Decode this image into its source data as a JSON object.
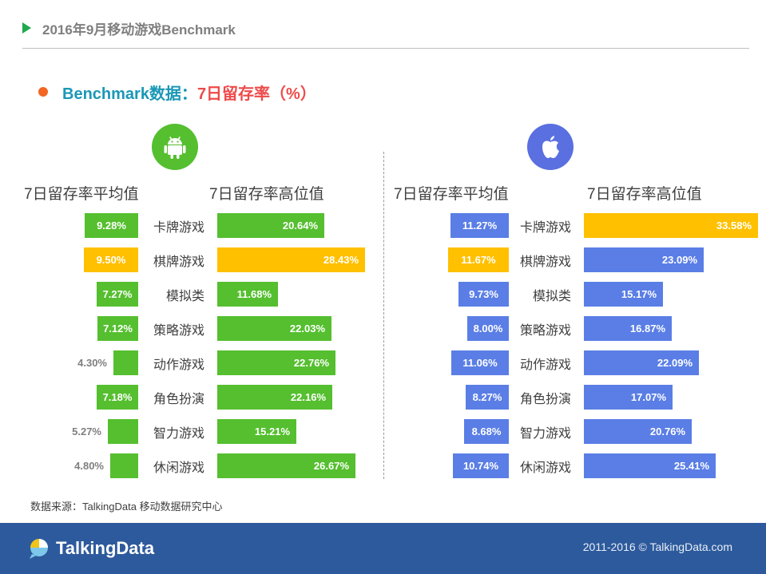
{
  "header": {
    "title": "2016年9月移动游戏Benchmark"
  },
  "subtitle": {
    "prefix": "Benchmark数据：",
    "highlight": "7日留存率（%）"
  },
  "colors": {
    "android_green": "#55bf2f",
    "ios_blue": "#5a7ee6",
    "highlight_yellow": "#ffc000",
    "ios_badge": "#5a6fe0",
    "footer_bg": "#2d5a9c"
  },
  "source": "数据来源：TalkingData 移动数据研究中心",
  "footer": {
    "logo_text": "TalkingData",
    "copyright": "2011-2016 © TalkingData.com"
  },
  "chart_data": [
    {
      "type": "bar",
      "platform_icon": "android-icon",
      "categories": [
        "卡牌游戏",
        "棋牌游戏",
        "模拟类",
        "策略游戏",
        "动作游戏",
        "角色扮演",
        "智力游戏",
        "休闲游戏"
      ],
      "series": [
        {
          "name": "7日留存率平均值",
          "values": [
            9.28,
            9.5,
            7.27,
            7.12,
            4.3,
            7.18,
            5.27,
            4.8
          ],
          "labels": [
            "9.28%",
            "9.50%",
            "7.27%",
            "7.12%",
            "4.30%",
            "7.18%",
            "5.27%",
            "4.80%"
          ],
          "highlight_index": 1
        },
        {
          "name": "7日留存率高位值",
          "values": [
            20.64,
            28.43,
            11.68,
            22.03,
            22.76,
            22.16,
            15.21,
            26.67
          ],
          "labels": [
            "20.64%",
            "28.43%",
            "11.68%",
            "22.03%",
            "22.76%",
            "22.16%",
            "15.21%",
            "26.67%"
          ],
          "highlight_index": 1
        }
      ]
    },
    {
      "type": "bar",
      "platform_icon": "apple-icon",
      "categories": [
        "卡牌游戏",
        "棋牌游戏",
        "模拟类",
        "策略游戏",
        "动作游戏",
        "角色扮演",
        "智力游戏",
        "休闲游戏"
      ],
      "series": [
        {
          "name": "7日留存率平均值",
          "values": [
            11.27,
            11.67,
            9.73,
            8.0,
            11.06,
            8.27,
            8.68,
            10.74
          ],
          "labels": [
            "11.27%",
            "11.67%",
            "9.73%",
            "8.00%",
            "11.06%",
            "8.27%",
            "8.68%",
            "10.74%"
          ],
          "highlight_index": 1
        },
        {
          "name": "7日留存率高位值",
          "values": [
            33.58,
            23.09,
            15.17,
            16.87,
            22.09,
            17.07,
            20.76,
            25.41
          ],
          "labels": [
            "33.58%",
            "23.09%",
            "15.17%",
            "16.87%",
            "22.09%",
            "17.07%",
            "20.76%",
            "25.41%"
          ],
          "highlight_index": 0
        }
      ]
    }
  ]
}
